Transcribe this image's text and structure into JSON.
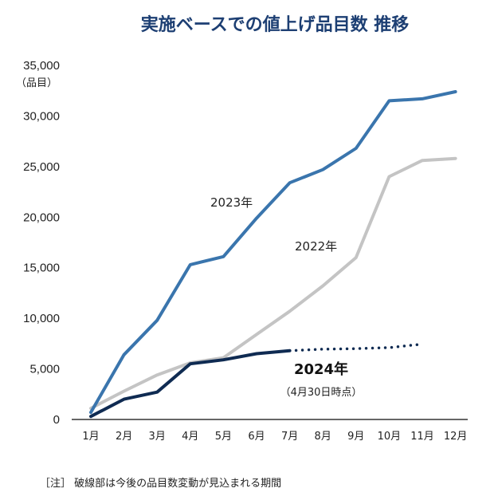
{
  "chart_data": {
    "type": "line",
    "title": "実施ベースでの値上げ品目数 推移",
    "ylabel": "（品目）",
    "ylim": [
      0,
      35000
    ],
    "yticks": [
      "0",
      "5,000",
      "10,000",
      "15,000",
      "20,000",
      "25,000",
      "30,000",
      "35,000"
    ],
    "ytick_values": [
      0,
      5000,
      10000,
      15000,
      20000,
      25000,
      30000,
      35000
    ],
    "categories": [
      "1月",
      "2月",
      "3月",
      "4月",
      "5月",
      "6月",
      "7月",
      "8月",
      "9月",
      "10月",
      "11月",
      "12月"
    ],
    "series": [
      {
        "name": "2023年",
        "label": "2023年",
        "color": "#3a75ad",
        "values": [
          700,
          6400,
          9800,
          15300,
          16100,
          19900,
          23400,
          24700,
          26800,
          31500,
          31700,
          32400
        ]
      },
      {
        "name": "2022年",
        "label": "2022年",
        "color": "#c4c4c4",
        "values": [
          1100,
          2800,
          4400,
          5600,
          6100,
          8400,
          10700,
          13200,
          16000,
          24000,
          25600,
          25800
        ]
      },
      {
        "name": "2024年",
        "label": "2024年",
        "sublabel": "（4月30日時点）",
        "color": "#0f2b52",
        "values": [
          300,
          2000,
          2700,
          5500,
          5900,
          6500,
          6800,
          null,
          null,
          null,
          null,
          null
        ],
        "projected": [
          6800,
          6950,
          7000,
          7100,
          7450
        ],
        "projected_start_index": 6
      }
    ],
    "note": "［注］ 破線部は今後の品目数変動が見込まれる期間"
  }
}
